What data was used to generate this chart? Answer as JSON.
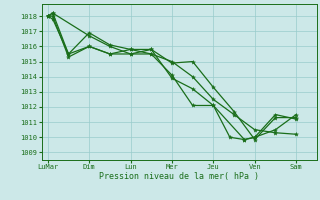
{
  "xlabel": "Pression niveau de la mer( hPa )",
  "bg_color": "#cce8e8",
  "grid_color": "#99cccc",
  "line_color": "#1a6e1a",
  "ylim": [
    1008.5,
    1018.8
  ],
  "yticks": [
    1009,
    1010,
    1011,
    1012,
    1013,
    1014,
    1015,
    1016,
    1017,
    1018
  ],
  "x_labels": [
    "LuMar",
    "Dim",
    "Lun",
    "Mer",
    "Jeu",
    "Ven",
    "Sam"
  ],
  "x_positions": [
    0,
    1,
    2,
    3,
    4,
    5,
    6
  ],
  "xlim": [
    -0.15,
    6.5
  ],
  "s1_x": [
    0.0,
    0.12,
    1.0,
    1.5,
    2.0,
    2.5,
    3.0,
    3.5,
    4.0,
    4.5,
    5.0,
    5.5,
    6.0
  ],
  "s1_y": [
    1018.0,
    1018.2,
    1016.7,
    1016.0,
    1015.5,
    1015.5,
    1015.0,
    1014.0,
    1012.5,
    1011.5,
    1010.5,
    1010.3,
    1010.2
  ],
  "s2_x": [
    0.0,
    0.12,
    0.5,
    1.0,
    1.5,
    2.0,
    2.5,
    3.0,
    3.5,
    4.0,
    4.5,
    5.0,
    5.5,
    6.0
  ],
  "s2_y": [
    1018.0,
    1018.2,
    1015.5,
    1016.9,
    1016.1,
    1015.8,
    1015.8,
    1014.9,
    1015.0,
    1013.3,
    1011.7,
    1009.85,
    1011.3,
    1011.3
  ],
  "s3_x": [
    0.0,
    0.12,
    0.5,
    1.0,
    1.5,
    2.0,
    2.5,
    3.0,
    3.5,
    4.0,
    4.4,
    4.75,
    5.0,
    5.5,
    6.0
  ],
  "s3_y": [
    1018.0,
    1018.0,
    1015.3,
    1016.0,
    1015.5,
    1015.5,
    1015.8,
    1013.9,
    1013.2,
    1012.1,
    1010.0,
    1009.85,
    1010.0,
    1011.5,
    1011.2
  ],
  "s4_x": [
    0.0,
    0.12,
    0.5,
    1.0,
    1.5,
    2.0,
    2.5,
    3.0,
    3.5,
    4.0,
    4.75,
    5.0,
    5.5,
    6.0
  ],
  "s4_y": [
    1018.0,
    1017.8,
    1015.5,
    1016.0,
    1015.5,
    1015.8,
    1015.5,
    1014.1,
    1012.1,
    1012.1,
    1009.85,
    1010.0,
    1010.5,
    1011.5
  ]
}
